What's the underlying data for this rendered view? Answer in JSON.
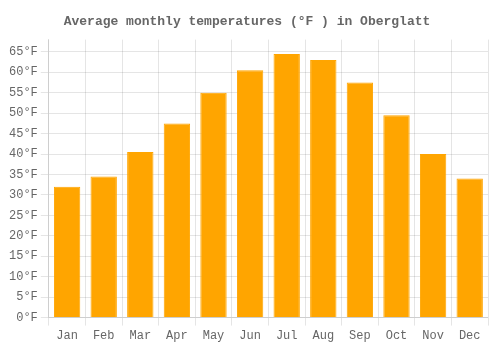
{
  "chart_data": {
    "type": "bar",
    "title": "Average monthly temperatures (°F ) in Oberglatt",
    "categories": [
      "Jan",
      "Feb",
      "Mar",
      "Apr",
      "May",
      "Jun",
      "Jul",
      "Aug",
      "Sep",
      "Oct",
      "Nov",
      "Dec"
    ],
    "values": [
      32,
      34.5,
      40.5,
      47.5,
      55,
      60.5,
      64.5,
      63,
      57.5,
      49.5,
      40,
      34
    ],
    "color": "#FFA500",
    "ylim": [
      0,
      68
    ],
    "yticks": [
      {
        "value": 0,
        "label": "0°F"
      },
      {
        "value": 5,
        "label": "5°F"
      },
      {
        "value": 10,
        "label": "10°F"
      },
      {
        "value": 15,
        "label": "15°F"
      },
      {
        "value": 20,
        "label": "20°F"
      },
      {
        "value": 25,
        "label": "25°F"
      },
      {
        "value": 30,
        "label": "30°F"
      },
      {
        "value": 35,
        "label": "35°F"
      },
      {
        "value": 40,
        "label": "40°F"
      },
      {
        "value": 45,
        "label": "45°F"
      },
      {
        "value": 50,
        "label": "50°F"
      },
      {
        "value": 55,
        "label": "55°F"
      },
      {
        "value": 60,
        "label": "60°F"
      },
      {
        "value": 65,
        "label": "65°F"
      }
    ],
    "grid": true
  }
}
